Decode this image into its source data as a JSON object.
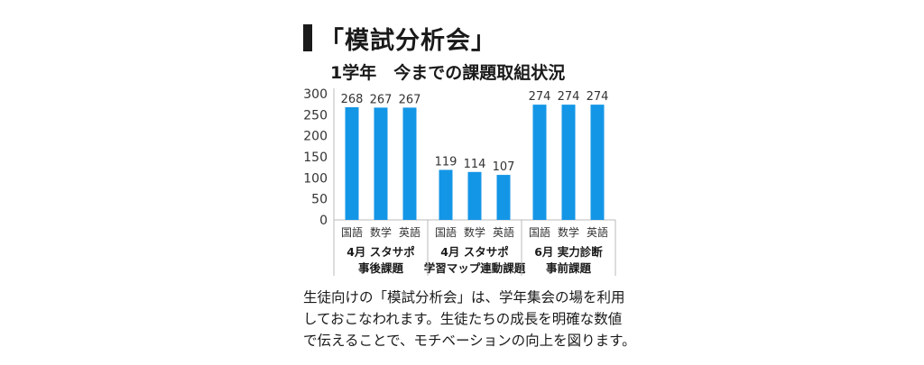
{
  "heading": "「模試分析会」",
  "chart_data": {
    "type": "bar",
    "title": "1学年　今までの課題取組状況",
    "ylim": [
      0,
      300
    ],
    "yticks": [
      0,
      50,
      100,
      150,
      200,
      250,
      300
    ],
    "grid": false,
    "bar_color": "#1496e6",
    "groups": [
      {
        "label_lines": [
          "4月 スタサポ",
          "事後課題"
        ],
        "categories": [
          "国語",
          "数学",
          "英語"
        ],
        "values": [
          268,
          267,
          267
        ]
      },
      {
        "label_lines": [
          "4月 スタサポ",
          "学習マップ連動課題"
        ],
        "categories": [
          "国語",
          "数学",
          "英語"
        ],
        "values": [
          119,
          114,
          107
        ]
      },
      {
        "label_lines": [
          "6月 実力診断",
          "事前課題"
        ],
        "categories": [
          "国語",
          "数学",
          "英語"
        ],
        "values": [
          274,
          274,
          274
        ]
      }
    ]
  },
  "caption_lines": [
    "生徒向けの「模試分析会」は、学年集会の場を利用",
    "しておこなわれます。生徒たちの成長を明確な数値",
    "で伝えることで、モチベーションの向上を図ります。"
  ]
}
